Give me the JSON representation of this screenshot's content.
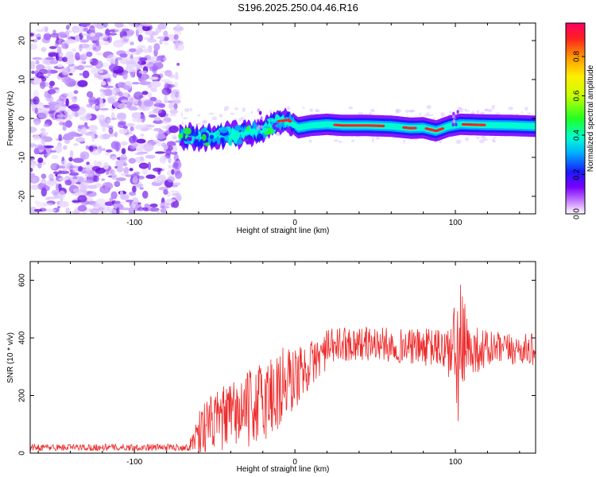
{
  "title": "S196.2025.250.04.46.R16",
  "colors": {
    "snr_line": "#ee2b2b",
    "spectrum_noise": "#8a3cf0",
    "spectrum_peak": "#e0202a",
    "axis": "#000000"
  },
  "chart_data": [
    {
      "type": "heatmap",
      "xlabel": "Height of straight line (km)",
      "ylabel": "Frequency (Hz)",
      "xlim": [
        -165,
        150
      ],
      "ylim": [
        -24.5,
        24.5
      ],
      "x_ticks": [
        -100,
        0,
        100
      ],
      "y_ticks": [
        -20,
        -10,
        0,
        10,
        20
      ],
      "noise_region_x": [
        -165,
        -72
      ],
      "signal_trace": [
        {
          "x": -72,
          "y": -4.5
        },
        {
          "x": -60,
          "y": -4.8
        },
        {
          "x": -45,
          "y": -4.5
        },
        {
          "x": -30,
          "y": -4.0
        },
        {
          "x": -20,
          "y": -3.0
        },
        {
          "x": -12,
          "y": -0.8
        },
        {
          "x": -4,
          "y": -0.4
        },
        {
          "x": 2,
          "y": -2.4
        },
        {
          "x": 10,
          "y": -1.8
        },
        {
          "x": 20,
          "y": -1.5
        },
        {
          "x": 30,
          "y": -1.8
        },
        {
          "x": 45,
          "y": -1.8
        },
        {
          "x": 60,
          "y": -2.0
        },
        {
          "x": 72,
          "y": -2.5
        },
        {
          "x": 80,
          "y": -2.4
        },
        {
          "x": 88,
          "y": -3.2
        },
        {
          "x": 96,
          "y": -2.0
        },
        {
          "x": 103,
          "y": -1.5
        },
        {
          "x": 120,
          "y": -1.7
        },
        {
          "x": 135,
          "y": -1.8
        },
        {
          "x": 150,
          "y": -2.0
        }
      ],
      "colorbar": {
        "label": "Normalized spectral amplitude",
        "range": [
          0.0,
          0.97
        ],
        "ticks": [
          "0.0",
          "0.2",
          "0.4",
          "0.6",
          "0.8"
        ]
      }
    },
    {
      "type": "line",
      "xlabel": "Height of straight line (km)",
      "ylabel": "SNR (10 * v/v)",
      "xlim": [
        -165,
        150
      ],
      "ylim": [
        0,
        665
      ],
      "x_ticks": [
        -100,
        0,
        100
      ],
      "y_ticks": [
        0,
        200,
        400,
        600
      ],
      "series": [
        {
          "color": "#ee2b2b",
          "envelope": [
            {
              "x": -165,
              "mean": 20,
              "amp": 12
            },
            {
              "x": -66,
              "mean": 20,
              "amp": 12
            },
            {
              "x": -60,
              "mean": 80,
              "amp": 90
            },
            {
              "x": -45,
              "mean": 120,
              "amp": 110
            },
            {
              "x": -30,
              "mean": 150,
              "amp": 130
            },
            {
              "x": -20,
              "mean": 180,
              "amp": 150
            },
            {
              "x": -10,
              "mean": 220,
              "amp": 170
            },
            {
              "x": 0,
              "mean": 260,
              "amp": 110
            },
            {
              "x": 10,
              "mean": 310,
              "amp": 80
            },
            {
              "x": 20,
              "mean": 360,
              "amp": 70
            },
            {
              "x": 30,
              "mean": 380,
              "amp": 60
            },
            {
              "x": 50,
              "mean": 380,
              "amp": 60
            },
            {
              "x": 70,
              "mean": 370,
              "amp": 60
            },
            {
              "x": 90,
              "mean": 365,
              "amp": 70
            },
            {
              "x": 98,
              "mean": 350,
              "amp": 120
            },
            {
              "x": 103,
              "mean": 330,
              "amp": 300
            },
            {
              "x": 108,
              "mean": 360,
              "amp": 90
            },
            {
              "x": 130,
              "mean": 360,
              "amp": 55
            },
            {
              "x": 150,
              "mean": 360,
              "amp": 55
            }
          ]
        }
      ]
    }
  ]
}
